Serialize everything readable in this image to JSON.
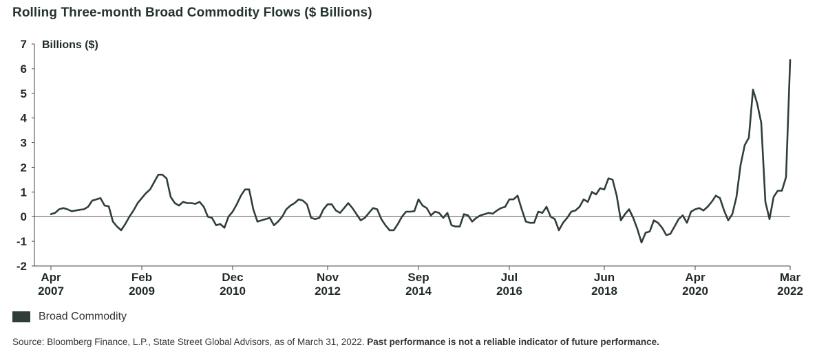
{
  "title": "Rolling Three-month Broad Commodity Flows ($ Billions)",
  "legend": {
    "label": "Broad Commodity",
    "color": "#2f3f38"
  },
  "source": {
    "text": "Source: Bloomberg Finance, L.P., State Street Global Advisors, as of March 31, 2022.",
    "bold": "Past performance is not a reliable indicator of future performance."
  },
  "chart_data": {
    "type": "line",
    "title": "Rolling Three-month Broad Commodity Flows ($ Billions)",
    "ylabel": "Billions ($)",
    "ylim": [
      -2,
      7
    ],
    "yticks": [
      -2,
      -1,
      0,
      1,
      2,
      3,
      4,
      5,
      6,
      7
    ],
    "xlim": [
      "2007-04",
      "2022-03"
    ],
    "xticks": [
      {
        "x": "2007-04",
        "month": "Apr",
        "year": "2007"
      },
      {
        "x": "2009-02",
        "month": "Feb",
        "year": "2009"
      },
      {
        "x": "2010-12",
        "month": "Dec",
        "year": "2010"
      },
      {
        "x": "2012-11",
        "month": "Nov",
        "year": "2012"
      },
      {
        "x": "2014-09",
        "month": "Sep",
        "year": "2014"
      },
      {
        "x": "2016-07",
        "month": "Jul",
        "year": "2016"
      },
      {
        "x": "2018-06",
        "month": "Jun",
        "year": "2018"
      },
      {
        "x": "2020-04",
        "month": "Apr",
        "year": "2020"
      },
      {
        "x": "2022-03",
        "month": "Mar",
        "year": "2022"
      }
    ],
    "grid": false,
    "legend_position": "bottom-left",
    "series": [
      {
        "name": "Broad Commodity",
        "color": "#2f3f38",
        "points": [
          [
            "2007-04",
            0.1
          ],
          [
            "2007-05",
            0.15
          ],
          [
            "2007-06",
            0.3
          ],
          [
            "2007-07",
            0.35
          ],
          [
            "2007-08",
            0.3
          ],
          [
            "2007-09",
            0.22
          ],
          [
            "2007-10",
            0.25
          ],
          [
            "2007-11",
            0.28
          ],
          [
            "2007-12",
            0.3
          ],
          [
            "2008-01",
            0.4
          ],
          [
            "2008-02",
            0.65
          ],
          [
            "2008-03",
            0.7
          ],
          [
            "2008-04",
            0.75
          ],
          [
            "2008-05",
            0.45
          ],
          [
            "2008-06",
            0.42
          ],
          [
            "2008-07",
            -0.2
          ],
          [
            "2008-08",
            -0.4
          ],
          [
            "2008-09",
            -0.55
          ],
          [
            "2008-10",
            -0.3
          ],
          [
            "2008-11",
            0.0
          ],
          [
            "2008-12",
            0.25
          ],
          [
            "2009-01",
            0.55
          ],
          [
            "2009-02",
            0.75
          ],
          [
            "2009-03",
            0.95
          ],
          [
            "2009-04",
            1.1
          ],
          [
            "2009-05",
            1.4
          ],
          [
            "2009-06",
            1.7
          ],
          [
            "2009-07",
            1.7
          ],
          [
            "2009-08",
            1.55
          ],
          [
            "2009-09",
            0.8
          ],
          [
            "2009-10",
            0.55
          ],
          [
            "2009-11",
            0.45
          ],
          [
            "2009-12",
            0.6
          ],
          [
            "2010-01",
            0.55
          ],
          [
            "2010-02",
            0.55
          ],
          [
            "2010-03",
            0.52
          ],
          [
            "2010-04",
            0.6
          ],
          [
            "2010-05",
            0.4
          ],
          [
            "2010-06",
            0.0
          ],
          [
            "2010-07",
            -0.05
          ],
          [
            "2010-08",
            -0.35
          ],
          [
            "2010-09",
            -0.3
          ],
          [
            "2010-10",
            -0.45
          ],
          [
            "2010-11",
            0.0
          ],
          [
            "2010-12",
            0.2
          ],
          [
            "2011-01",
            0.5
          ],
          [
            "2011-02",
            0.85
          ],
          [
            "2011-03",
            1.1
          ],
          [
            "2011-04",
            1.1
          ],
          [
            "2011-05",
            0.3
          ],
          [
            "2011-06",
            -0.2
          ],
          [
            "2011-07",
            -0.15
          ],
          [
            "2011-08",
            -0.1
          ],
          [
            "2011-09",
            -0.05
          ],
          [
            "2011-10",
            -0.35
          ],
          [
            "2011-11",
            -0.2
          ],
          [
            "2011-12",
            0.0
          ],
          [
            "2012-01",
            0.3
          ],
          [
            "2012-02",
            0.45
          ],
          [
            "2012-03",
            0.55
          ],
          [
            "2012-04",
            0.7
          ],
          [
            "2012-05",
            0.65
          ],
          [
            "2012-06",
            0.5
          ],
          [
            "2012-07",
            -0.05
          ],
          [
            "2012-08",
            -0.1
          ],
          [
            "2012-09",
            -0.05
          ],
          [
            "2012-10",
            0.3
          ],
          [
            "2012-11",
            0.5
          ],
          [
            "2012-12",
            0.5
          ],
          [
            "2013-01",
            0.25
          ],
          [
            "2013-02",
            0.15
          ],
          [
            "2013-03",
            0.35
          ],
          [
            "2013-04",
            0.55
          ],
          [
            "2013-05",
            0.35
          ],
          [
            "2013-06",
            0.1
          ],
          [
            "2013-07",
            -0.15
          ],
          [
            "2013-08",
            -0.05
          ],
          [
            "2013-09",
            0.15
          ],
          [
            "2013-10",
            0.35
          ],
          [
            "2013-11",
            0.3
          ],
          [
            "2013-12",
            -0.1
          ],
          [
            "2014-01",
            -0.35
          ],
          [
            "2014-02",
            -0.55
          ],
          [
            "2014-03",
            -0.55
          ],
          [
            "2014-04",
            -0.3
          ],
          [
            "2014-05",
            0.0
          ],
          [
            "2014-06",
            0.2
          ],
          [
            "2014-07",
            0.2
          ],
          [
            "2014-08",
            0.22
          ],
          [
            "2014-09",
            0.7
          ],
          [
            "2014-10",
            0.45
          ],
          [
            "2014-11",
            0.35
          ],
          [
            "2014-12",
            0.05
          ],
          [
            "2015-01",
            0.2
          ],
          [
            "2015-02",
            0.15
          ],
          [
            "2015-03",
            -0.05
          ],
          [
            "2015-04",
            0.15
          ],
          [
            "2015-05",
            -0.35
          ],
          [
            "2015-06",
            -0.4
          ],
          [
            "2015-07",
            -0.4
          ],
          [
            "2015-08",
            0.1
          ],
          [
            "2015-09",
            0.05
          ],
          [
            "2015-10",
            -0.2
          ],
          [
            "2015-11",
            -0.05
          ],
          [
            "2015-12",
            0.05
          ],
          [
            "2016-01",
            0.1
          ],
          [
            "2016-02",
            0.15
          ],
          [
            "2016-03",
            0.12
          ],
          [
            "2016-04",
            0.25
          ],
          [
            "2016-05",
            0.35
          ],
          [
            "2016-06",
            0.4
          ],
          [
            "2016-07",
            0.7
          ],
          [
            "2016-08",
            0.7
          ],
          [
            "2016-09",
            0.85
          ],
          [
            "2016-10",
            0.3
          ],
          [
            "2016-11",
            -0.2
          ],
          [
            "2016-12",
            -0.25
          ],
          [
            "2017-01",
            -0.25
          ],
          [
            "2017-02",
            0.2
          ],
          [
            "2017-03",
            0.15
          ],
          [
            "2017-04",
            0.4
          ],
          [
            "2017-05",
            0.0
          ],
          [
            "2017-06",
            -0.1
          ],
          [
            "2017-07",
            -0.55
          ],
          [
            "2017-08",
            -0.25
          ],
          [
            "2017-09",
            -0.05
          ],
          [
            "2017-10",
            0.2
          ],
          [
            "2017-11",
            0.25
          ],
          [
            "2017-12",
            0.4
          ],
          [
            "2018-01",
            0.7
          ],
          [
            "2018-02",
            0.6
          ],
          [
            "2018-03",
            1.0
          ],
          [
            "2018-04",
            0.9
          ],
          [
            "2018-05",
            1.15
          ],
          [
            "2018-06",
            1.1
          ],
          [
            "2018-07",
            1.55
          ],
          [
            "2018-08",
            1.5
          ],
          [
            "2018-09",
            0.85
          ],
          [
            "2018-10",
            -0.15
          ],
          [
            "2018-11",
            0.1
          ],
          [
            "2018-12",
            0.3
          ],
          [
            "2019-01",
            -0.05
          ],
          [
            "2019-02",
            -0.5
          ],
          [
            "2019-03",
            -1.05
          ],
          [
            "2019-04",
            -0.65
          ],
          [
            "2019-05",
            -0.6
          ],
          [
            "2019-06",
            -0.15
          ],
          [
            "2019-07",
            -0.25
          ],
          [
            "2019-08",
            -0.45
          ],
          [
            "2019-09",
            -0.75
          ],
          [
            "2019-10",
            -0.7
          ],
          [
            "2019-11",
            -0.4
          ],
          [
            "2019-12",
            -0.1
          ],
          [
            "2020-01",
            0.05
          ],
          [
            "2020-02",
            -0.25
          ],
          [
            "2020-03",
            0.2
          ],
          [
            "2020-04",
            0.3
          ],
          [
            "2020-05",
            0.35
          ],
          [
            "2020-06",
            0.25
          ],
          [
            "2020-07",
            0.4
          ],
          [
            "2020-08",
            0.6
          ],
          [
            "2020-09",
            0.85
          ],
          [
            "2020-10",
            0.75
          ],
          [
            "2020-11",
            0.25
          ],
          [
            "2020-12",
            -0.15
          ],
          [
            "2021-01",
            0.1
          ],
          [
            "2021-02",
            0.8
          ],
          [
            "2021-03",
            2.1
          ],
          [
            "2021-04",
            2.9
          ],
          [
            "2021-05",
            3.2
          ],
          [
            "2021-06",
            5.15
          ],
          [
            "2021-07",
            4.6
          ],
          [
            "2021-08",
            3.8
          ],
          [
            "2021-09",
            0.6
          ],
          [
            "2021-10",
            -0.1
          ],
          [
            "2021-11",
            0.8
          ],
          [
            "2021-12",
            1.05
          ],
          [
            "2022-01",
            1.05
          ],
          [
            "2022-02",
            1.6
          ],
          [
            "2022-03",
            6.35
          ]
        ]
      }
    ]
  }
}
